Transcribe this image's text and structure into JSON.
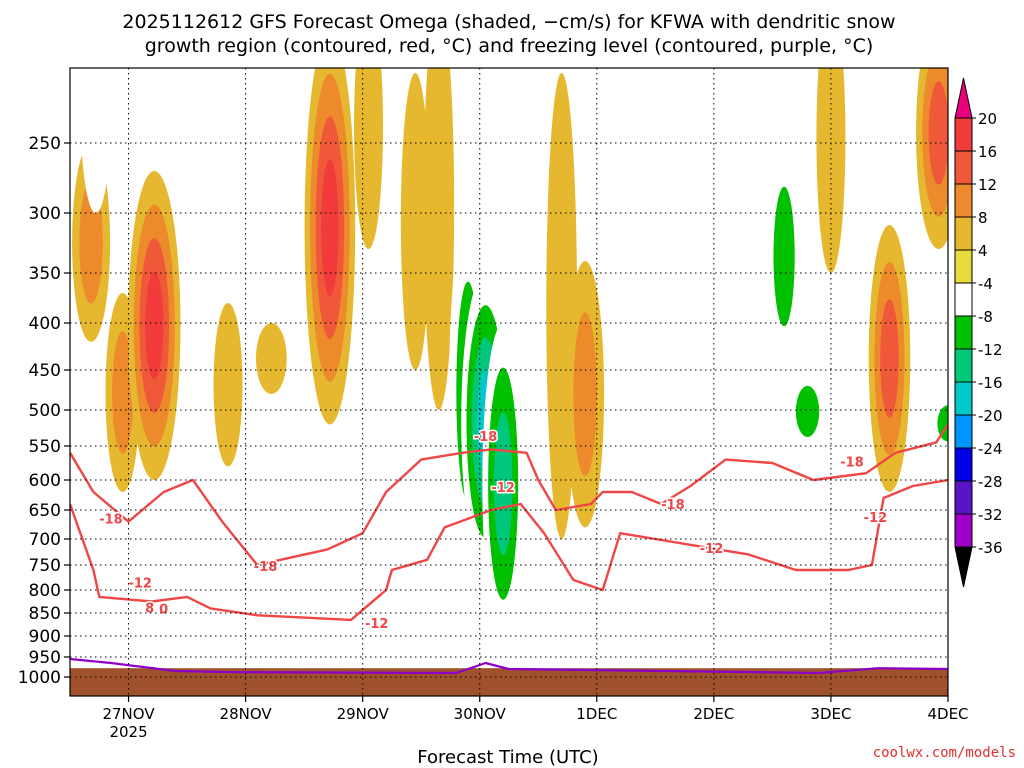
{
  "chart_data": {
    "type": "heatmap",
    "title_line1": "2025112612 GFS Forecast Omega (shaded, −cm/s) for KFWA with dendritic snow",
    "title_line2": "growth region (contoured, red, °C) and freezing level (contoured, purple, °C)",
    "xlabel": "Forecast Time (UTC)",
    "ylabel": "",
    "credit": "coolwx.com/models",
    "x_range_days": [
      0,
      7.5
    ],
    "x_ticks": [
      {
        "day": 0.5,
        "label": "27NOV",
        "sub": "2025"
      },
      {
        "day": 1.5,
        "label": "28NOV",
        "sub": ""
      },
      {
        "day": 2.5,
        "label": "29NOV",
        "sub": ""
      },
      {
        "day": 3.5,
        "label": "30NOV",
        "sub": ""
      },
      {
        "day": 4.5,
        "label": "1DEC",
        "sub": ""
      },
      {
        "day": 5.5,
        "label": "2DEC",
        "sub": ""
      },
      {
        "day": 6.5,
        "label": "3DEC",
        "sub": ""
      },
      {
        "day": 7.5,
        "label": "4DEC",
        "sub": ""
      }
    ],
    "y_levels": [
      250,
      300,
      350,
      400,
      450,
      500,
      550,
      600,
      650,
      700,
      750,
      800,
      850,
      900,
      950,
      1000
    ],
    "colorbar": {
      "labels": [
        "20",
        "16",
        "12",
        "8",
        "4",
        "-4",
        "-8",
        "-12",
        "-16",
        "-20",
        "-24",
        "-28",
        "-32",
        "-36"
      ],
      "colors": [
        "#e8007c",
        "#f23c3c",
        "#f0583a",
        "#ec8a2c",
        "#e6b830",
        "#e6dc3c",
        "#ffffff",
        "#00c000",
        "#00c87a",
        "#00c8c8",
        "#0096ff",
        "#0000e6",
        "#5a14c8",
        "#a000c8",
        "#a0a0a0",
        "#000000"
      ]
    },
    "contour_labels": [
      {
        "text": "-18",
        "day": 0.35,
        "p": 665
      },
      {
        "text": "-12",
        "day": 0.6,
        "p": 785
      },
      {
        "text": "8",
        "day": 0.68,
        "p": 838
      },
      {
        "text": "0",
        "day": 0.8,
        "p": 840
      },
      {
        "text": "-18",
        "day": 1.67,
        "p": 752
      },
      {
        "text": "-12",
        "day": 2.62,
        "p": 872
      },
      {
        "text": "-18",
        "day": 3.55,
        "p": 536
      },
      {
        "text": "-12",
        "day": 3.7,
        "p": 612
      },
      {
        "text": "-18",
        "day": 5.15,
        "p": 640
      },
      {
        "text": "-12",
        "day": 5.48,
        "p": 717
      },
      {
        "text": "-18",
        "day": 6.68,
        "p": 573
      },
      {
        "text": "-12",
        "day": 6.88,
        "p": 662
      }
    ],
    "omega_blobs": [
      {
        "day": 0.18,
        "p0": 250,
        "p1": 420,
        "v": 10
      },
      {
        "day": 0.22,
        "p0": 150,
        "p1": 300,
        "v": -6
      },
      {
        "day": 0.45,
        "p0": 370,
        "p1": 620,
        "v": 8
      },
      {
        "day": 0.72,
        "p0": 270,
        "p1": 600,
        "v": 18
      },
      {
        "day": 1.5,
        "p0": 120,
        "p1": 170,
        "v": 4
      },
      {
        "day": 1.35,
        "p0": 380,
        "p1": 580,
        "v": 5
      },
      {
        "day": 1.72,
        "p0": 400,
        "p1": 480,
        "v": 6
      },
      {
        "day": 2.22,
        "p0": 170,
        "p1": 520,
        "v": 17
      },
      {
        "day": 2.55,
        "p0": 150,
        "p1": 330,
        "v": 5
      },
      {
        "day": 2.95,
        "p0": 200,
        "p1": 450,
        "v": 5
      },
      {
        "day": 3.15,
        "p0": 150,
        "p1": 500,
        "v": 6
      },
      {
        "day": 3.4,
        "p0": 300,
        "p1": 760,
        "v": -10
      },
      {
        "day": 3.55,
        "p0": 350,
        "p1": 760,
        "v": -16
      },
      {
        "day": 3.7,
        "p0": 400,
        "p1": 920,
        "v": -12
      },
      {
        "day": 4.2,
        "p0": 200,
        "p1": 700,
        "v": 6
      },
      {
        "day": 4.4,
        "p0": 340,
        "p1": 680,
        "v": 10
      },
      {
        "day": 5.85,
        "p0": 200,
        "p1": 480,
        "v": -6
      },
      {
        "day": 6.1,
        "p0": 250,
        "p1": 450,
        "v": -8
      },
      {
        "day": 6.3,
        "p0": 450,
        "p1": 560,
        "v": -10
      },
      {
        "day": 6.5,
        "p0": 150,
        "p1": 350,
        "v": 5
      },
      {
        "day": 7.0,
        "p0": 310,
        "p1": 620,
        "v": 12
      },
      {
        "day": 7.42,
        "p0": 160,
        "p1": 330,
        "v": 14
      },
      {
        "day": 7.5,
        "p0": 480,
        "p1": 560,
        "v": -8
      }
    ],
    "snow_growth_top": [
      {
        "day": 0.0,
        "p": 560
      },
      {
        "day": 0.2,
        "p": 620
      },
      {
        "day": 0.5,
        "p": 670
      },
      {
        "day": 0.8,
        "p": 620
      },
      {
        "day": 1.05,
        "p": 600
      },
      {
        "day": 1.3,
        "p": 670
      },
      {
        "day": 1.6,
        "p": 750
      },
      {
        "day": 1.9,
        "p": 735
      },
      {
        "day": 2.2,
        "p": 720
      },
      {
        "day": 2.5,
        "p": 690
      },
      {
        "day": 2.7,
        "p": 620
      },
      {
        "day": 3.0,
        "p": 570
      },
      {
        "day": 3.35,
        "p": 560
      },
      {
        "day": 3.6,
        "p": 555
      },
      {
        "day": 3.9,
        "p": 560
      },
      {
        "day": 4.0,
        "p": 600
      },
      {
        "day": 4.15,
        "p": 650
      },
      {
        "day": 4.45,
        "p": 640
      },
      {
        "day": 4.55,
        "p": 620
      },
      {
        "day": 4.8,
        "p": 620
      },
      {
        "day": 5.05,
        "p": 640
      },
      {
        "day": 5.3,
        "p": 610
      },
      {
        "day": 5.6,
        "p": 570
      },
      {
        "day": 6.0,
        "p": 575
      },
      {
        "day": 6.35,
        "p": 600
      },
      {
        "day": 6.8,
        "p": 590
      },
      {
        "day": 7.05,
        "p": 560
      },
      {
        "day": 7.4,
        "p": 545
      },
      {
        "day": 7.5,
        "p": 520
      }
    ],
    "snow_growth_bottom": [
      {
        "day": 0.0,
        "p": 640
      },
      {
        "day": 0.2,
        "p": 760
      },
      {
        "day": 0.25,
        "p": 815
      },
      {
        "day": 0.7,
        "p": 825
      },
      {
        "day": 1.0,
        "p": 815
      },
      {
        "day": 1.2,
        "p": 840
      },
      {
        "day": 1.6,
        "p": 855
      },
      {
        "day": 2.0,
        "p": 860
      },
      {
        "day": 2.4,
        "p": 865
      },
      {
        "day": 2.7,
        "p": 800
      },
      {
        "day": 2.75,
        "p": 760
      },
      {
        "day": 3.05,
        "p": 740
      },
      {
        "day": 3.2,
        "p": 680
      },
      {
        "day": 3.6,
        "p": 650
      },
      {
        "day": 3.85,
        "p": 640
      },
      {
        "day": 4.05,
        "p": 690
      },
      {
        "day": 4.3,
        "p": 780
      },
      {
        "day": 4.55,
        "p": 800
      },
      {
        "day": 4.7,
        "p": 690
      },
      {
        "day": 5.0,
        "p": 700
      },
      {
        "day": 5.4,
        "p": 715
      },
      {
        "day": 5.8,
        "p": 730
      },
      {
        "day": 6.2,
        "p": 760
      },
      {
        "day": 6.65,
        "p": 760
      },
      {
        "day": 6.85,
        "p": 750
      },
      {
        "day": 6.95,
        "p": 630
      },
      {
        "day": 7.2,
        "p": 610
      },
      {
        "day": 7.5,
        "p": 600
      }
    ],
    "freezing_level": [
      {
        "day": 0.0,
        "p": 955
      },
      {
        "day": 0.35,
        "p": 965
      },
      {
        "day": 0.9,
        "p": 985
      },
      {
        "day": 1.4,
        "p": 988
      },
      {
        "day": 3.3,
        "p": 990
      },
      {
        "day": 3.55,
        "p": 965
      },
      {
        "day": 3.75,
        "p": 980
      },
      {
        "day": 6.4,
        "p": 990
      },
      {
        "day": 6.9,
        "p": 978
      },
      {
        "day": 7.5,
        "p": 980
      }
    ],
    "terrain_p": 978
  }
}
